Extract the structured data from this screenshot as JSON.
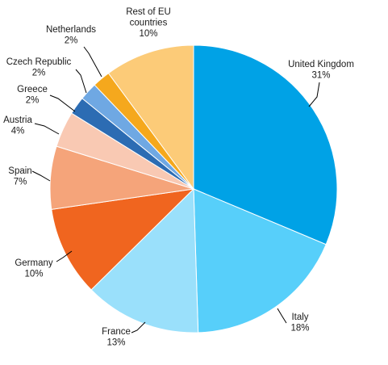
{
  "chart_data": {
    "type": "pie",
    "unit": "%",
    "slices": [
      {
        "label": "United Kingdom",
        "value": 31,
        "value_label": "31%",
        "color": "#00a2e6"
      },
      {
        "label": "Italy",
        "value": 18,
        "value_label": "18%",
        "color": "#57cffa"
      },
      {
        "label": "France",
        "value": 13,
        "value_label": "13%",
        "color": "#9ae0fb"
      },
      {
        "label": "Germany",
        "value": 10,
        "value_label": "10%",
        "color": "#f0651f"
      },
      {
        "label": "Spain",
        "value": 7,
        "value_label": "7%",
        "color": "#f5a47a"
      },
      {
        "label": "Austria",
        "value": 4,
        "value_label": "4%",
        "color": "#f9c9b3"
      },
      {
        "label": "Greece",
        "value": 2,
        "value_label": "2%",
        "color": "#2c6cb3"
      },
      {
        "label": "Czech Republic",
        "value": 2,
        "value_label": "2%",
        "color": "#6fa8e3"
      },
      {
        "label": "Netherlands",
        "value": 2,
        "value_label": "2%",
        "color": "#f5a81d"
      },
      {
        "label": "Rest of EU countries",
        "label_lines": [
          "Rest of EU",
          "countries"
        ],
        "value": 10,
        "value_label": "10%",
        "color": "#fccb78"
      }
    ]
  }
}
